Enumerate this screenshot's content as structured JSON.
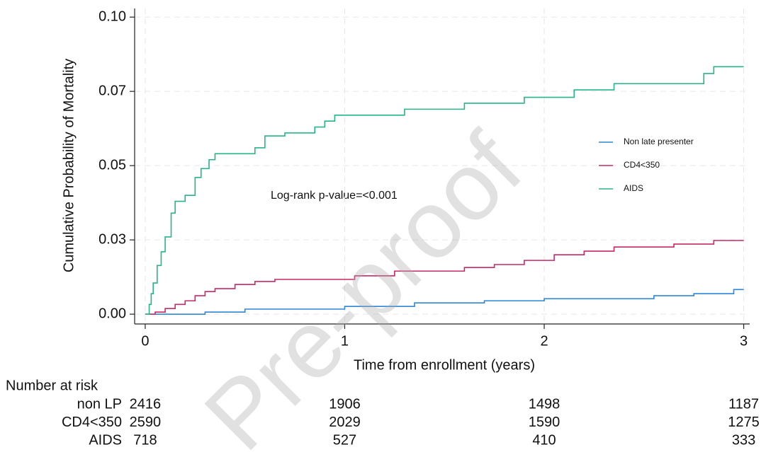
{
  "chart_data": {
    "type": "line",
    "step": "post",
    "ylabel": "Cumulative Probability of Mortality",
    "xlabel": "Time from enrollment (years)",
    "annotation": "Log-rank p-value=<0.001",
    "watermark": "Pre-proof",
    "xlim": [
      -0.053,
      3.03
    ],
    "ylim": [
      -0.0033,
      0.1029
    ],
    "xticks": [
      0,
      1,
      2,
      3
    ],
    "yticks": [
      {
        "value": 0,
        "label": "0.00"
      },
      {
        "value": 0.025,
        "label": "0.03"
      },
      0.05,
      {
        "value": 0.075,
        "label": "0.07"
      },
      {
        "value": 0.1,
        "label": "0.10"
      }
    ],
    "grid": true,
    "legend": "right",
    "series": [
      {
        "name": "Non late presenter",
        "color": "#2e86d6",
        "x": [
          0,
          0.3,
          0.5,
          1.0,
          1.35,
          1.7,
          2.0,
          2.55,
          2.75,
          2.95,
          3.0
        ],
        "values": [
          0,
          0.0007,
          0.0017,
          0.0026,
          0.0038,
          0.0045,
          0.0052,
          0.0062,
          0.0069,
          0.0083,
          0.0083
        ]
      },
      {
        "name": "CD4<350",
        "color": "#c8286a",
        "x": [
          0,
          0.05,
          0.1,
          0.15,
          0.2,
          0.25,
          0.3,
          0.35,
          0.45,
          0.55,
          0.65,
          1.05,
          1.25,
          1.6,
          1.75,
          1.9,
          2.05,
          2.2,
          2.35,
          2.65,
          2.85,
          3.0
        ],
        "values": [
          0,
          0.0007,
          0.0019,
          0.0033,
          0.0045,
          0.0062,
          0.0076,
          0.0086,
          0.01,
          0.011,
          0.0117,
          0.0129,
          0.0145,
          0.0157,
          0.0167,
          0.0181,
          0.02,
          0.0212,
          0.0226,
          0.0236,
          0.0248,
          0.0248
        ]
      },
      {
        "name": "AIDS",
        "color": "#26b58a",
        "x": [
          0,
          0.02,
          0.03,
          0.04,
          0.06,
          0.08,
          0.1,
          0.13,
          0.15,
          0.2,
          0.25,
          0.28,
          0.32,
          0.35,
          0.55,
          0.6,
          0.7,
          0.85,
          0.9,
          0.95,
          1.3,
          1.6,
          1.9,
          2.15,
          2.35,
          2.8,
          2.85,
          3.0
        ],
        "values": [
          0,
          0.0033,
          0.0069,
          0.0105,
          0.0164,
          0.021,
          0.026,
          0.034,
          0.038,
          0.04,
          0.046,
          0.049,
          0.052,
          0.054,
          0.056,
          0.06,
          0.061,
          0.063,
          0.065,
          0.067,
          0.069,
          0.071,
          0.073,
          0.0755,
          0.0776,
          0.081,
          0.0833,
          0.0833
        ]
      }
    ],
    "risk_table": {
      "title": "Number at risk",
      "rows": [
        {
          "label": "non LP",
          "counts": [
            2416,
            1906,
            1498,
            1187
          ]
        },
        {
          "label": "CD4<350",
          "counts": [
            2590,
            2029,
            1590,
            1275
          ]
        },
        {
          "label": "AIDS",
          "counts": [
            718,
            527,
            410,
            333
          ]
        }
      ]
    }
  }
}
